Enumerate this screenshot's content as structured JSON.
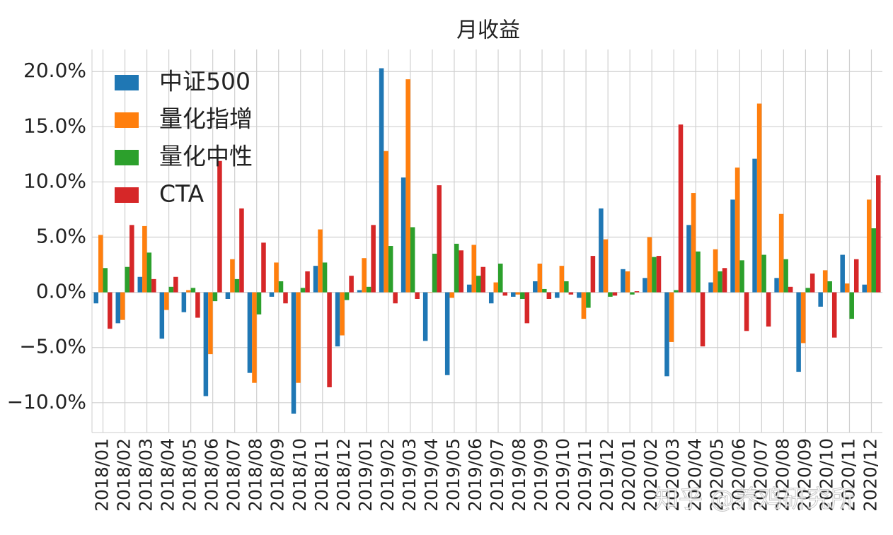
{
  "chart_data": {
    "type": "bar",
    "title": "月收益",
    "categories": [
      "2018/01",
      "2018/02",
      "2018/03",
      "2018/04",
      "2018/05",
      "2018/06",
      "2018/07",
      "2018/08",
      "2018/09",
      "2018/10",
      "2018/11",
      "2018/12",
      "2019/01",
      "2019/02",
      "2019/03",
      "2019/04",
      "2019/05",
      "2019/06",
      "2019/07",
      "2019/08",
      "2019/09",
      "2019/10",
      "2019/11",
      "2019/12",
      "2020/01",
      "2020/02",
      "2020/03",
      "2020/04",
      "2020/05",
      "2020/06",
      "2020/07",
      "2020/08",
      "2020/09",
      "2020/10",
      "2020/11",
      "2020/12"
    ],
    "series": [
      {
        "name": "中证500",
        "color": "#1f77b4",
        "values": [
          -1.0,
          -2.8,
          1.4,
          -4.2,
          -1.8,
          -9.4,
          -0.6,
          -7.3,
          -0.4,
          -11.0,
          2.4,
          -4.9,
          0.2,
          20.3,
          10.4,
          -4.4,
          -7.5,
          0.7,
          -1.0,
          -0.4,
          1.0,
          -0.5,
          -0.5,
          7.6,
          2.1,
          1.3,
          -7.6,
          6.1,
          0.9,
          8.4,
          12.1,
          1.3,
          -7.2,
          -1.3,
          3.4,
          0.7
        ]
      },
      {
        "name": "量化指增",
        "color": "#ff7f0e",
        "values": [
          5.2,
          -2.5,
          6.0,
          -1.6,
          0.2,
          -5.6,
          3.0,
          -8.2,
          2.7,
          -8.2,
          5.7,
          -3.9,
          3.1,
          12.8,
          19.3,
          0.0,
          -0.5,
          4.3,
          0.9,
          -0.2,
          2.6,
          2.4,
          -2.4,
          4.8,
          1.9,
          5.0,
          -4.5,
          9.0,
          3.9,
          11.3,
          17.1,
          7.1,
          -4.6,
          2.0,
          0.8,
          8.4
        ]
      },
      {
        "name": "量化中性",
        "color": "#2ca02c",
        "values": [
          2.2,
          2.3,
          3.6,
          0.5,
          0.4,
          -0.8,
          1.2,
          -2.0,
          1.0,
          0.4,
          2.7,
          -0.7,
          0.5,
          4.2,
          5.9,
          3.5,
          4.4,
          1.5,
          2.6,
          -0.6,
          0.3,
          1.0,
          -1.4,
          -0.4,
          -0.2,
          3.2,
          0.2,
          3.7,
          1.9,
          2.9,
          3.4,
          3.0,
          0.4,
          1.0,
          -2.4,
          5.8
        ]
      },
      {
        "name": "CTA",
        "color": "#d62728",
        "values": [
          -3.3,
          6.1,
          1.2,
          1.4,
          -2.3,
          11.9,
          7.6,
          4.5,
          -1.0,
          1.9,
          -8.6,
          1.5,
          6.1,
          -1.0,
          -0.6,
          9.7,
          3.8,
          2.3,
          -0.3,
          -2.8,
          -0.6,
          -0.2,
          3.3,
          -0.3,
          0.1,
          3.3,
          15.2,
          -4.9,
          2.2,
          -3.5,
          -3.1,
          0.5,
          1.7,
          -4.1,
          3.0,
          10.6
        ]
      }
    ],
    "ylim": [
      -12.7,
      22
    ],
    "yticks": [
      {
        "value": -10,
        "label": "−10.0%"
      },
      {
        "value": -5,
        "label": "−5.0%"
      },
      {
        "value": 0,
        "label": "0.0%"
      },
      {
        "value": 5,
        "label": "5.0%"
      },
      {
        "value": 10,
        "label": "10.0%"
      },
      {
        "value": 15,
        "label": "15.0%"
      },
      {
        "value": 20,
        "label": "20.0%"
      }
    ],
    "grid": true,
    "legend": "upper left",
    "watermark": "知乎 @养鸡研究所"
  }
}
